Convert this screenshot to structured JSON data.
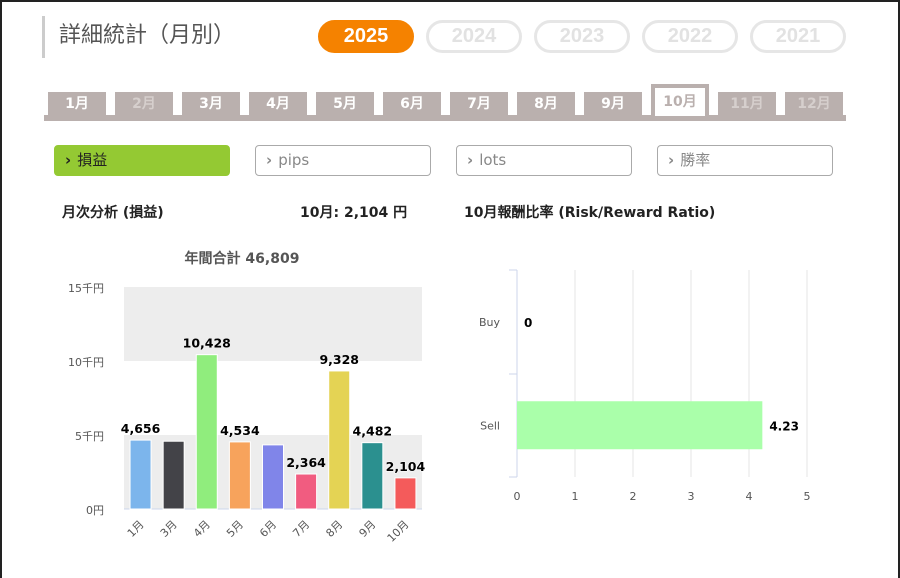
{
  "header": {
    "title": "詳細統計（月別）"
  },
  "years": [
    {
      "label": "2025",
      "active": true
    },
    {
      "label": "2024"
    },
    {
      "label": "2023"
    },
    {
      "label": "2022"
    },
    {
      "label": "2021"
    }
  ],
  "months": [
    {
      "label": "1月"
    },
    {
      "label": "2月",
      "disabled": true
    },
    {
      "label": "3月"
    },
    {
      "label": "4月"
    },
    {
      "label": "5月"
    },
    {
      "label": "6月"
    },
    {
      "label": "7月"
    },
    {
      "label": "8月"
    },
    {
      "label": "9月"
    },
    {
      "label": "10月",
      "active": true
    },
    {
      "label": "11月",
      "disabled": true
    },
    {
      "label": "12月",
      "disabled": true
    }
  ],
  "metrics": [
    {
      "label": "損益",
      "active": true
    },
    {
      "label": "pips"
    },
    {
      "label": "lots"
    },
    {
      "label": "勝率"
    }
  ],
  "chevron_icon": "chevron-right-icon",
  "monthly": {
    "heading": "月次分析 (損益)",
    "current": "10月:  2,104 円"
  },
  "rr": {
    "heading": "10月報酬比率 (Risk/Reward Ratio)"
  },
  "colors": {
    "accent": "#f58200",
    "metric_active": "#94c933",
    "tab": "#bab0ae"
  },
  "chart_data": [
    {
      "type": "bar",
      "title": "年間合計 46,809",
      "categories": [
        "1月",
        "3月",
        "4月",
        "5月",
        "6月",
        "7月",
        "8月",
        "9月",
        "10月"
      ],
      "values": [
        4656,
        4580,
        10428,
        4534,
        4333,
        2364,
        9328,
        4482,
        2104
      ],
      "labels": [
        "4,656",
        "",
        "10,428",
        "4,534",
        "",
        "2,364",
        "9,328",
        "4,482",
        "2,104"
      ],
      "colors": [
        "#7cb5ec",
        "#434348",
        "#90ed7d",
        "#f7a35c",
        "#8085e9",
        "#f15c80",
        "#e4d354",
        "#2b908f",
        "#f45b5b"
      ],
      "yticks": [
        "0円",
        "5千円",
        "10千円",
        "15千円"
      ],
      "ylim": [
        0,
        15000
      ],
      "grid": "banded"
    },
    {
      "type": "bar",
      "orientation": "horizontal",
      "categories": [
        "Buy",
        "Sell"
      ],
      "values": [
        0,
        4.23
      ],
      "labels": [
        "0",
        "4.23"
      ],
      "color": "#aaffaa",
      "xticks": [
        "0",
        "1",
        "2",
        "3",
        "4",
        "5"
      ],
      "xlim": [
        0,
        5
      ],
      "grid": true
    }
  ]
}
